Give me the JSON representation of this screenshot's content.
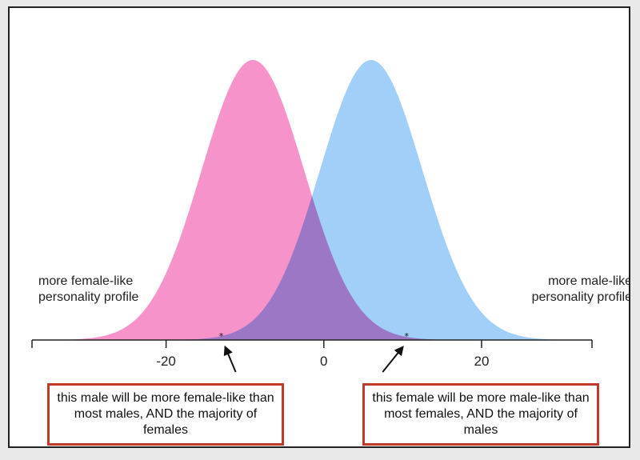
{
  "chart_data": {
    "type": "area",
    "title": "",
    "xlabel": "",
    "ylabel": "",
    "xlim": [
      -37,
      34
    ],
    "ylim": [
      0,
      1
    ],
    "x_ticks": [
      -20,
      0,
      20
    ],
    "x_tick_labels": [
      "-20",
      "0",
      "20"
    ],
    "grid": false,
    "legend": "none",
    "series": [
      {
        "distribution": "normal",
        "mean": -9,
        "sd": 6.5,
        "peak": 1,
        "color": "#f78dc8",
        "opacity": 0.95
      },
      {
        "distribution": "normal",
        "mean": 6,
        "sd": 6.5,
        "peak": 1,
        "color": "#8cc4f7",
        "opacity": 0.82
      }
    ],
    "markers": [
      {
        "x": -13,
        "symbol": "*"
      },
      {
        "x": 10.5,
        "symbol": "*"
      }
    ],
    "annotations": [
      {
        "x": -13,
        "side": "left",
        "text": "this male will be more female-like than most males, AND the majority of females"
      },
      {
        "x": 10.5,
        "side": "right",
        "text": "this female will be more male-like than most females, AND the majority of males"
      }
    ],
    "side_labels": {
      "left": "more female-like personality profile",
      "right": "more male-like personality profile"
    }
  },
  "colors": {
    "callout_border": "#c0392b",
    "axis": "#222222"
  }
}
